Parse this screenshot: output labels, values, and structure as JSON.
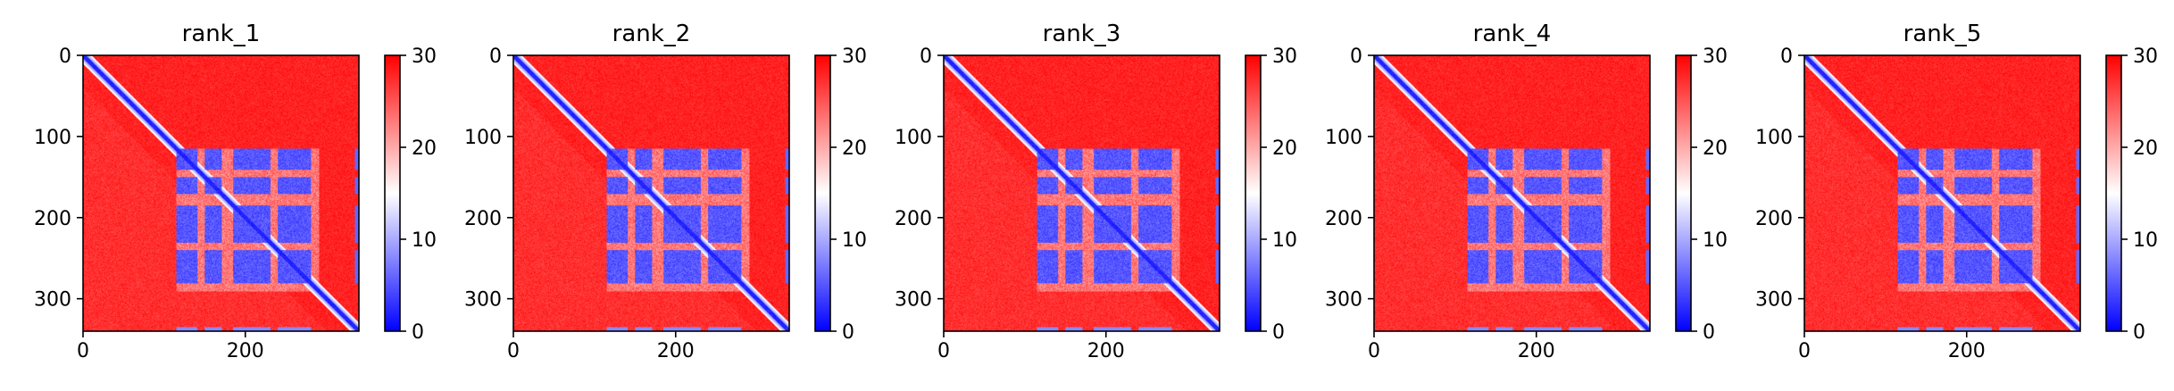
{
  "chart_data": [
    {
      "type": "heatmap",
      "title": "rank_1",
      "xlabel": "",
      "ylabel": "",
      "x_ticks": [
        0,
        200
      ],
      "y_ticks": [
        0,
        100,
        200,
        300
      ],
      "xlim": [
        0,
        340
      ],
      "ylim": [
        340,
        0
      ],
      "colorbar": {
        "ticks": [
          0,
          10,
          20,
          30
        ],
        "range": [
          0,
          30
        ],
        "colormap": "bwr"
      },
      "matrix_size": 340,
      "structure": {
        "diagonal": "low (blue) along main diagonal",
        "blue_block_range": [
          115,
          290
        ],
        "low_row_bands": [
          [
            115,
            140
          ],
          [
            150,
            170
          ],
          [
            185,
            230
          ],
          [
            240,
            280
          ]
        ],
        "high_stripes": [
          143,
          178,
          235
        ],
        "right_edge_blue": [
          335,
          340
        ],
        "background": "high (red)"
      }
    },
    {
      "type": "heatmap",
      "title": "rank_2",
      "xlabel": "",
      "ylabel": "",
      "x_ticks": [
        0,
        200
      ],
      "y_ticks": [
        0,
        100,
        200,
        300
      ],
      "xlim": [
        0,
        340
      ],
      "ylim": [
        340,
        0
      ],
      "colorbar": {
        "ticks": [
          0,
          10,
          20,
          30
        ],
        "range": [
          0,
          30
        ],
        "colormap": "bwr"
      },
      "matrix_size": 340,
      "structure": {
        "diagonal": "low (blue) along main diagonal",
        "blue_block_range": [
          115,
          290
        ],
        "low_row_bands": [
          [
            115,
            140
          ],
          [
            150,
            170
          ],
          [
            185,
            230
          ],
          [
            240,
            280
          ]
        ],
        "high_stripes": [
          143,
          178,
          235
        ],
        "right_edge_blue": [
          335,
          340
        ],
        "background": "high (red)"
      }
    },
    {
      "type": "heatmap",
      "title": "rank_3",
      "xlabel": "",
      "ylabel": "",
      "x_ticks": [
        0,
        200
      ],
      "y_ticks": [
        0,
        100,
        200,
        300
      ],
      "xlim": [
        0,
        340
      ],
      "ylim": [
        340,
        0
      ],
      "colorbar": {
        "ticks": [
          0,
          10,
          20,
          30
        ],
        "range": [
          0,
          30
        ],
        "colormap": "bwr"
      },
      "matrix_size": 340,
      "structure": {
        "diagonal": "low (blue) along main diagonal",
        "blue_block_range": [
          115,
          290
        ],
        "low_row_bands": [
          [
            115,
            140
          ],
          [
            150,
            170
          ],
          [
            185,
            230
          ],
          [
            240,
            280
          ]
        ],
        "high_stripes": [
          143,
          178,
          235
        ],
        "right_edge_blue": [
          335,
          340
        ],
        "background": "high (red)"
      }
    },
    {
      "type": "heatmap",
      "title": "rank_4",
      "xlabel": "",
      "ylabel": "",
      "x_ticks": [
        0,
        200
      ],
      "y_ticks": [
        0,
        100,
        200,
        300
      ],
      "xlim": [
        0,
        340
      ],
      "ylim": [
        340,
        0
      ],
      "colorbar": {
        "ticks": [
          0,
          10,
          20,
          30
        ],
        "range": [
          0,
          30
        ],
        "colormap": "bwr"
      },
      "matrix_size": 340,
      "structure": {
        "diagonal": "low (blue) along main diagonal",
        "blue_block_range": [
          115,
          290
        ],
        "low_row_bands": [
          [
            115,
            140
          ],
          [
            150,
            170
          ],
          [
            185,
            230
          ],
          [
            240,
            280
          ]
        ],
        "high_stripes": [
          143,
          178,
          235
        ],
        "right_edge_blue": [
          335,
          340
        ],
        "background": "high (red)"
      }
    },
    {
      "type": "heatmap",
      "title": "rank_5",
      "xlabel": "",
      "ylabel": "",
      "x_ticks": [
        0,
        200
      ],
      "y_ticks": [
        0,
        100,
        200,
        300
      ],
      "xlim": [
        0,
        340
      ],
      "ylim": [
        340,
        0
      ],
      "colorbar": {
        "ticks": [
          0,
          10,
          20,
          30
        ],
        "range": [
          0,
          30
        ],
        "colormap": "bwr"
      },
      "matrix_size": 340,
      "structure": {
        "diagonal": "low (blue) along main diagonal",
        "blue_block_range": [
          115,
          290
        ],
        "low_row_bands": [
          [
            115,
            140
          ],
          [
            150,
            170
          ],
          [
            185,
            230
          ],
          [
            240,
            280
          ]
        ],
        "high_stripes": [
          143,
          178,
          235
        ],
        "right_edge_blue": [
          335,
          340
        ],
        "background": "high (red)"
      }
    }
  ],
  "colors": {
    "low": "#0000ff",
    "mid": "#ffffff",
    "high": "#ff0000"
  }
}
